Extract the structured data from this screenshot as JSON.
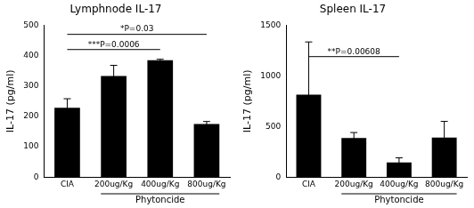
{
  "chart_data": [
    {
      "type": "bar",
      "title": "Lymphnode IL-17",
      "y_label": "IL-17 (pg/ml)",
      "categories": [
        "CIA",
        "200ug/Kg",
        "400ug/Kg",
        "800ug/Kg"
      ],
      "values": [
        228,
        333,
        385,
        175
      ],
      "errors": [
        30,
        35,
        3,
        8
      ],
      "color": "#000000",
      "ylim": [
        0,
        500
      ],
      "yticks": [
        0,
        100,
        200,
        300,
        400,
        500
      ],
      "grid": false,
      "group_label": {
        "text": "Phytoncide",
        "from": 1,
        "to": 3
      },
      "annotations": [
        {
          "text": "*P=0.03",
          "from": 0,
          "to": 3,
          "y": 470
        },
        {
          "text": "***P=0.0006",
          "from": 0,
          "to": 2,
          "y": 420
        }
      ]
    },
    {
      "type": "bar",
      "title": "Spleen IL-17",
      "y_label": "IL-17 (pg/ml)",
      "categories": [
        "CIA",
        "200ug/Kg",
        "400ug/Kg",
        "800ug/Kg"
      ],
      "values": [
        815,
        385,
        145,
        390
      ],
      "errors": [
        520,
        55,
        45,
        160
      ],
      "color": "#000000",
      "ylim": [
        0,
        1500
      ],
      "yticks": [
        0,
        500,
        1000,
        1500
      ],
      "grid": false,
      "group_label": {
        "text": "Phytoncide",
        "from": 1,
        "to": 3
      },
      "annotations": [
        {
          "text": "**P=0.00608",
          "from": 0,
          "to": 2,
          "y": 1190
        }
      ]
    }
  ]
}
